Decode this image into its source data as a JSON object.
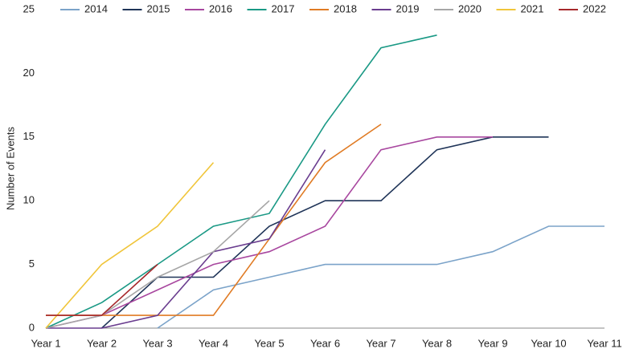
{
  "chart_data": {
    "type": "line",
    "y_label": "Number of Events",
    "categories": [
      "Year 1",
      "Year 2",
      "Year 3",
      "Year 4",
      "Year 5",
      "Year 6",
      "Year 7",
      "Year 8",
      "Year 9",
      "Year 10",
      "Year 11"
    ],
    "ylim": [
      0,
      25
    ],
    "yticks": [
      0,
      5,
      10,
      15,
      20,
      25
    ],
    "grid": false,
    "legend": "top",
    "series": [
      {
        "name": "2014",
        "color": "#7ba3c9",
        "values": [
          null,
          null,
          0,
          3,
          4,
          5,
          5,
          5,
          6,
          8,
          8
        ]
      },
      {
        "name": "2015",
        "color": "#1f3458",
        "values": [
          null,
          0,
          4,
          4,
          8,
          10,
          10,
          14,
          15,
          15,
          null
        ]
      },
      {
        "name": "2016",
        "color": "#a8479f",
        "values": [
          0,
          1,
          3,
          5,
          6,
          8,
          14,
          15,
          15,
          null,
          null
        ]
      },
      {
        "name": "2017",
        "color": "#1a9985",
        "values": [
          0,
          2,
          5,
          8,
          9,
          16,
          22,
          23,
          null,
          null,
          null
        ]
      },
      {
        "name": "2018",
        "color": "#e07b24",
        "values": [
          1,
          1,
          1,
          1,
          7,
          13,
          16,
          null,
          null,
          null,
          null
        ]
      },
      {
        "name": "2019",
        "color": "#6a3d8f",
        "values": [
          0,
          0,
          1,
          6,
          7,
          14,
          null,
          null,
          null,
          null,
          null
        ]
      },
      {
        "name": "2020",
        "color": "#a6a6a6",
        "values": [
          0,
          1,
          4,
          6,
          10,
          null,
          null,
          null,
          null,
          null,
          null
        ]
      },
      {
        "name": "2021",
        "color": "#f0c53a",
        "values": [
          0,
          5,
          8,
          13,
          null,
          null,
          null,
          null,
          null,
          null,
          null
        ]
      },
      {
        "name": "2022",
        "color": "#a6282b",
        "values": [
          1,
          1,
          5,
          null,
          null,
          null,
          null,
          null,
          null,
          null,
          null
        ]
      }
    ]
  }
}
